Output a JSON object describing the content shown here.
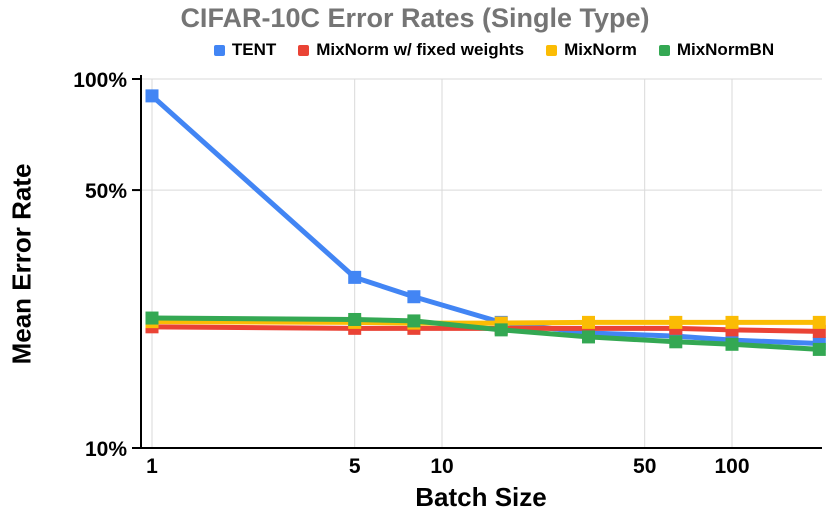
{
  "chart_data": {
    "type": "line",
    "title": "CIFAR-10C Error Rates (Single Type)",
    "title_color": "#757575",
    "xlabel": "Batch Size",
    "ylabel": "Mean Error Rate",
    "x_scale": "log",
    "y_scale": "log",
    "xlim": [
      0.92,
      205
    ],
    "ylim": [
      10,
      100
    ],
    "grid": "on",
    "legend_position": "top",
    "x": [
      1,
      5,
      8,
      16,
      32,
      64,
      100,
      200
    ],
    "x_ticks": {
      "values": [
        1,
        5,
        10,
        50,
        100
      ],
      "labels": [
        "1",
        "5",
        "10",
        "50",
        "100"
      ]
    },
    "y_ticks": {
      "values": [
        100,
        50,
        10
      ],
      "labels": [
        "100%",
        "50%",
        "10%"
      ]
    },
    "series": [
      {
        "name": "TENT",
        "color": "#4285F4",
        "values": [
          90,
          29,
          25.7,
          21.9,
          20.5,
          20.1,
          19.6,
          19.2
        ]
      },
      {
        "name": "MixNorm w/ fixed weights",
        "color": "#EA4335",
        "values": [
          21.3,
          21.1,
          21.1,
          21.1,
          21.1,
          21.1,
          20.9,
          20.7
        ]
      },
      {
        "name": "MixNorm",
        "color": "#FBBC04",
        "values": [
          22.0,
          21.9,
          21.8,
          21.8,
          21.9,
          21.9,
          21.9,
          21.9
        ]
      },
      {
        "name": "MixNormBN",
        "color": "#34A853",
        "values": [
          22.5,
          22.3,
          22.1,
          20.9,
          20.0,
          19.4,
          19.1,
          18.5
        ]
      }
    ],
    "style": {
      "grid_color": "#d9d9d9",
      "axis_color": "#000000",
      "line_width": 5,
      "marker": "square",
      "marker_size": 13
    }
  }
}
